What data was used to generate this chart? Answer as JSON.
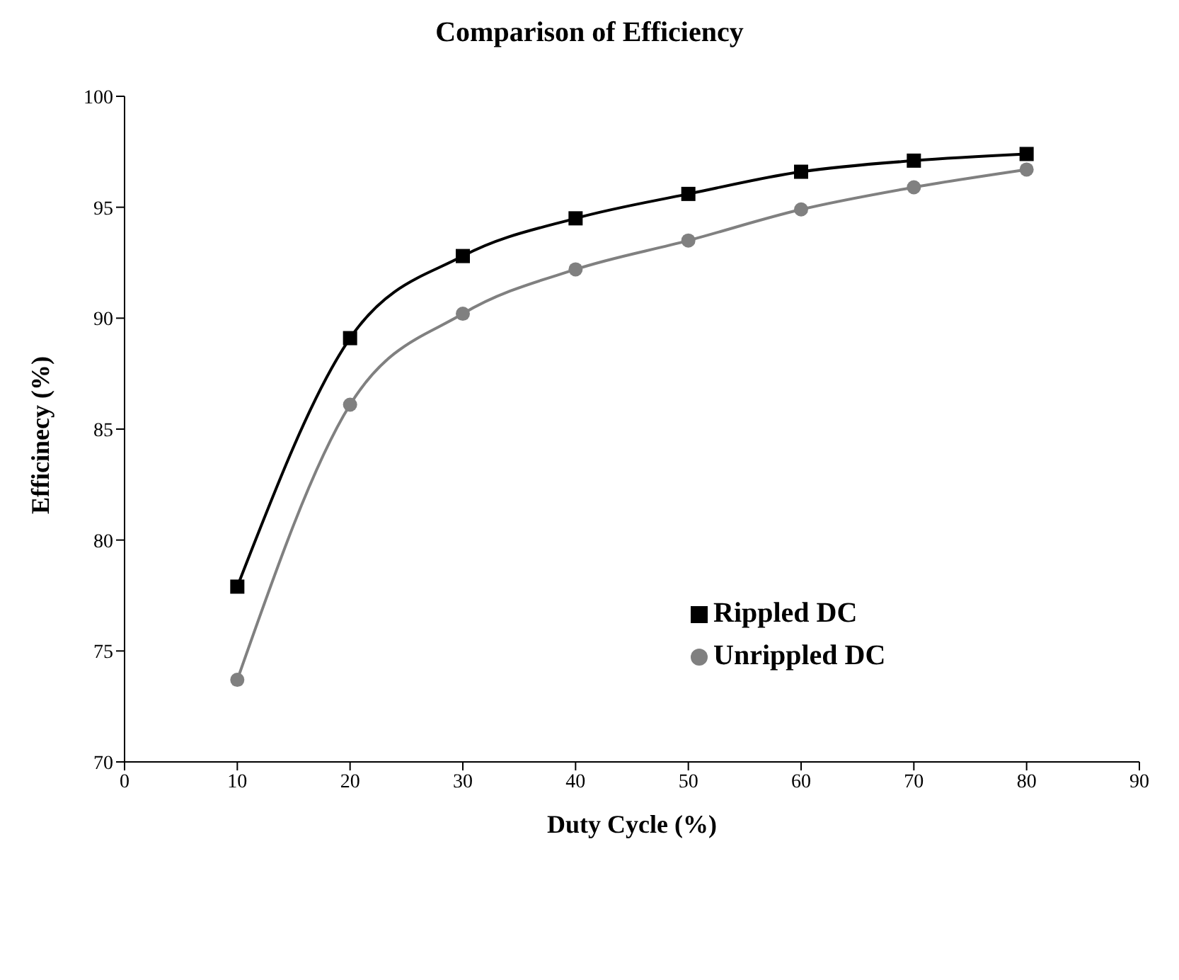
{
  "chart_data": {
    "type": "line",
    "title": "Comparison of Efficiency",
    "xlabel": "Duty Cycle (%)",
    "ylabel": "Efficinecy (%)",
    "x": [
      10,
      20,
      30,
      40,
      50,
      60,
      70,
      80
    ],
    "series": [
      {
        "name": "Rippled DC",
        "color": "#000000",
        "marker": "square",
        "values": [
          77.9,
          89.1,
          92.8,
          94.5,
          95.6,
          96.6,
          97.1,
          97.4
        ]
      },
      {
        "name": "Unrippled DC",
        "color": "#808080",
        "marker": "circle",
        "values": [
          73.7,
          86.1,
          90.2,
          92.2,
          93.5,
          94.9,
          95.9,
          96.7
        ]
      }
    ],
    "xlim": [
      0,
      90
    ],
    "xticks": [
      0,
      10,
      20,
      30,
      40,
      50,
      60,
      70,
      80,
      90
    ],
    "ylim": [
      70,
      100
    ],
    "yticks": [
      70,
      75,
      80,
      85,
      90,
      95,
      100
    ],
    "legend": "right",
    "line_style": "solid",
    "grid": false
  }
}
